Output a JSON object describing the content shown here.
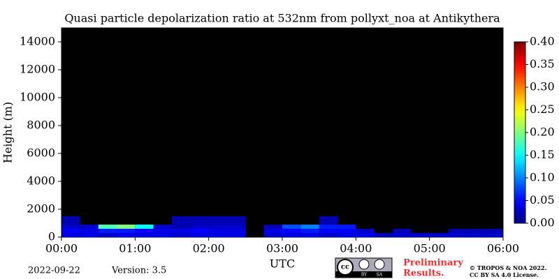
{
  "chart_data": {
    "type": "heatmap",
    "title": "Quasi particle depolarization ratio at 532nm from pollyxt_noa at Antikythera",
    "xlabel": "UTC",
    "ylabel": "Height (m)",
    "xlim": [
      0,
      6
    ],
    "ylim": [
      0,
      15000
    ],
    "xticks": [
      {
        "value": 0,
        "label": "00:00"
      },
      {
        "value": 1,
        "label": "01:00"
      },
      {
        "value": 2,
        "label": "02:00"
      },
      {
        "value": 3,
        "label": "03:00"
      },
      {
        "value": 4,
        "label": "04:00"
      },
      {
        "value": 5,
        "label": "05:00"
      },
      {
        "value": 6,
        "label": "06:00"
      }
    ],
    "yticks": [
      0,
      2000,
      4000,
      6000,
      8000,
      10000,
      12000,
      14000
    ],
    "x_bins": [
      0,
      0.25,
      0.5,
      0.75,
      1,
      1.25,
      1.5,
      1.75,
      2,
      2.25,
      2.5,
      2.75,
      3,
      3.25,
      3.5,
      3.75,
      4,
      4.25,
      4.5,
      4.75,
      5,
      5.25,
      5.5,
      5.75,
      6
    ],
    "y_bins": [
      0,
      300,
      600,
      900,
      1500
    ],
    "z": [
      [
        0.04,
        0.04,
        0.03,
        0.04,
        0.04,
        0.04,
        0.03,
        0.04,
        0.04,
        0.04,
        null,
        0.03,
        0.04,
        0.04,
        0.03,
        0.04,
        0.04,
        0.02,
        0.03,
        0.03,
        0.03,
        0.03,
        0.03,
        0.03
      ],
      [
        0.05,
        0.04,
        0.06,
        0.06,
        0.05,
        0.04,
        0.04,
        0.05,
        0.04,
        0.04,
        null,
        0.04,
        0.05,
        0.06,
        0.05,
        0.05,
        0.03,
        null,
        0.02,
        null,
        null,
        0.02,
        0.02,
        0.02
      ],
      [
        0.03,
        0.03,
        0.18,
        0.2,
        0.15,
        0.03,
        0.02,
        0.03,
        0.03,
        0.03,
        null,
        0.02,
        0.08,
        0.1,
        0.06,
        0.06,
        null,
        null,
        null,
        null,
        null,
        null,
        null,
        null
      ],
      [
        0.02,
        null,
        null,
        null,
        null,
        null,
        0.02,
        0.02,
        0.02,
        0.02,
        null,
        null,
        null,
        null,
        0.02,
        null,
        null,
        null,
        null,
        null,
        null,
        null,
        null,
        null
      ]
    ],
    "colormap": "jet",
    "background": "#000000",
    "clim": [
      0,
      0.4
    ],
    "cticks": [
      {
        "value": 0,
        "label": "0.00"
      },
      {
        "value": 0.05,
        "label": "0.05"
      },
      {
        "value": 0.1,
        "label": "0.10"
      },
      {
        "value": 0.15,
        "label": "0.15"
      },
      {
        "value": 0.2,
        "label": "0.20"
      },
      {
        "value": 0.25,
        "label": "0.25"
      },
      {
        "value": 0.3,
        "label": "0.30"
      },
      {
        "value": 0.35,
        "label": "0.35"
      },
      {
        "value": 0.4,
        "label": "0.40"
      }
    ]
  },
  "footer": {
    "date": "2022-09-22",
    "version": "Version: 3.5",
    "preliminary": [
      "Preliminary",
      "Results."
    ],
    "license_logo": [
      "BY",
      "SA"
    ],
    "copyright": [
      "© TROPOS & NOA 2022.",
      "CC BY SA 4.0 License."
    ]
  }
}
